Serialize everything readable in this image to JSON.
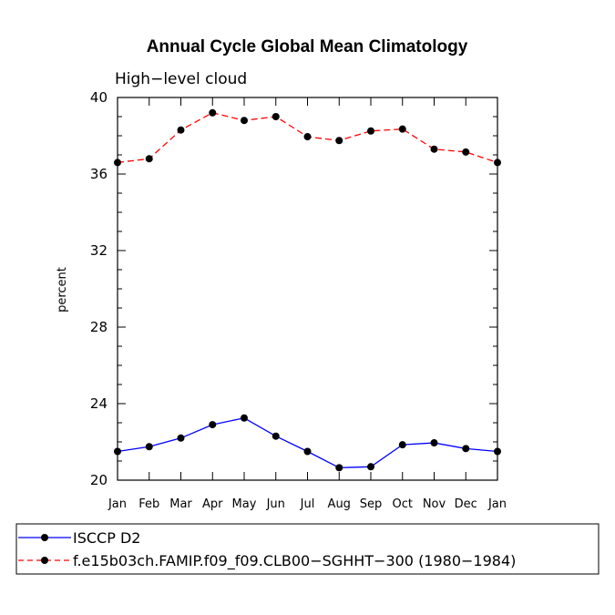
{
  "chart_data": {
    "type": "line",
    "title": "Annual Cycle Global Mean Climatology",
    "subtitle": "High−level cloud",
    "ylabel": "percent",
    "xlabel": "",
    "categories": [
      "Jan",
      "Feb",
      "Mar",
      "Apr",
      "May",
      "Jun",
      "Jul",
      "Aug",
      "Sep",
      "Oct",
      "Nov",
      "Dec",
      "Jan"
    ],
    "ylim": [
      20,
      40
    ],
    "yticks": [
      "20",
      "24",
      "28",
      "32",
      "36",
      "40"
    ],
    "grid": false,
    "legend_position": "bottom",
    "series": [
      {
        "name": "ISCCP D2",
        "color": "#0000ff",
        "dash": "solid",
        "values": [
          21.5,
          21.75,
          22.2,
          22.9,
          23.25,
          22.3,
          21.5,
          20.65,
          20.7,
          21.85,
          21.95,
          21.65,
          21.5
        ]
      },
      {
        "name": "f.e15b03ch.FAMIP.f09_f09.CLB00−SGHHT−300 (1980−1984)",
        "color": "#ff0000",
        "dash": "dashed",
        "values": [
          36.6,
          36.8,
          38.3,
          39.2,
          38.8,
          39.0,
          37.95,
          37.75,
          38.25,
          38.35,
          37.3,
          37.15,
          36.6
        ]
      }
    ]
  }
}
